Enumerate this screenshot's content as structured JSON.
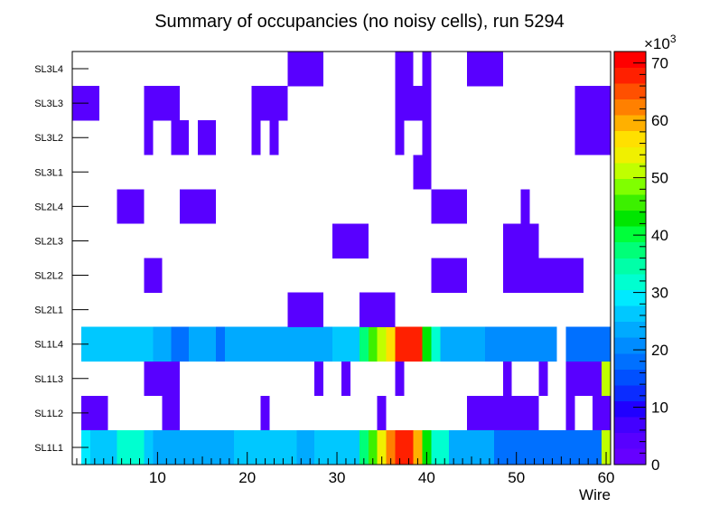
{
  "chart_data": {
    "type": "heatmap",
    "title": "Summary of occupancies (no noisy cells), run 5294",
    "xlabel": "Wire",
    "ylabel": "",
    "xlim": [
      0.5,
      60.5
    ],
    "xticks": [
      10,
      20,
      30,
      40,
      50,
      60
    ],
    "rows": [
      "SL1L1",
      "SL1L2",
      "SL1L3",
      "SL1L4",
      "SL2L1",
      "SL2L2",
      "SL2L3",
      "SL2L4",
      "SL3L1",
      "SL3L2",
      "SL3L3",
      "SL3L4"
    ],
    "colorbar": {
      "min": 0,
      "max": 72,
      "ticks": [
        0,
        10,
        20,
        30,
        40,
        50,
        60,
        70
      ],
      "tick_labels": [
        "0",
        "10",
        "20",
        "30",
        "40",
        "50",
        "60",
        "70"
      ],
      "multiplier": "×10",
      "multiplier_exp": "3"
    },
    "cells": {
      "SL1L1": [
        [
          2,
          2,
          28
        ],
        [
          3,
          5,
          25
        ],
        [
          6,
          8,
          32
        ],
        [
          9,
          9,
          27
        ],
        [
          10,
          18,
          24
        ],
        [
          19,
          25,
          27
        ],
        [
          26,
          27,
          24
        ],
        [
          28,
          32,
          27
        ],
        [
          33,
          33,
          37
        ],
        [
          34,
          34,
          45
        ],
        [
          35,
          35,
          55
        ],
        [
          36,
          36,
          62
        ],
        [
          37,
          38,
          67
        ],
        [
          39,
          39,
          60
        ],
        [
          40,
          40,
          44
        ],
        [
          41,
          42,
          31
        ],
        [
          43,
          47,
          24
        ],
        [
          48,
          59,
          19
        ],
        [
          60,
          60,
          50
        ]
      ],
      "SL1L2": [
        [
          2,
          4,
          4
        ],
        [
          11,
          12,
          4
        ],
        [
          22,
          22,
          4
        ],
        [
          35,
          35,
          4
        ],
        [
          45,
          52,
          4
        ],
        [
          56,
          56,
          4
        ],
        [
          59,
          60,
          4
        ]
      ],
      "SL1L3": [
        [
          9,
          12,
          4
        ],
        [
          28,
          28,
          4
        ],
        [
          31,
          31,
          4
        ],
        [
          37,
          37,
          4
        ],
        [
          49,
          49,
          4
        ],
        [
          53,
          53,
          4
        ],
        [
          56,
          59,
          4
        ],
        [
          60,
          60,
          52
        ]
      ],
      "SL1L4": [
        [
          2,
          9,
          27
        ],
        [
          10,
          11,
          24
        ],
        [
          12,
          13,
          19
        ],
        [
          14,
          16,
          24
        ],
        [
          17,
          17,
          19
        ],
        [
          18,
          29,
          24
        ],
        [
          30,
          32,
          27
        ],
        [
          33,
          33,
          37
        ],
        [
          34,
          34,
          45
        ],
        [
          35,
          35,
          52
        ],
        [
          36,
          36,
          58
        ],
        [
          37,
          37,
          67
        ],
        [
          38,
          39,
          69
        ],
        [
          40,
          40,
          42
        ],
        [
          41,
          41,
          32
        ],
        [
          42,
          46,
          24
        ],
        [
          47,
          54,
          21
        ],
        [
          56,
          56,
          19
        ],
        [
          57,
          60,
          17
        ]
      ],
      "SL2L1": [
        [
          25,
          28,
          4
        ],
        [
          33,
          36,
          4
        ]
      ],
      "SL2L2": [
        [
          9,
          10,
          4
        ],
        [
          41,
          44,
          4
        ],
        [
          49,
          57,
          4
        ]
      ],
      "SL2L3": [
        [
          30,
          33,
          4
        ],
        [
          49,
          52,
          4
        ]
      ],
      "SL2L4": [
        [
          6,
          8,
          4
        ],
        [
          13,
          16,
          4
        ],
        [
          41,
          44,
          4
        ],
        [
          51,
          51,
          4
        ]
      ],
      "SL3L1": [
        [
          39,
          40,
          4
        ]
      ],
      "SL3L2": [
        [
          9,
          9,
          4
        ],
        [
          12,
          13,
          4
        ],
        [
          15,
          16,
          4
        ],
        [
          21,
          21,
          4
        ],
        [
          23,
          23,
          4
        ],
        [
          37,
          37,
          4
        ],
        [
          40,
          40,
          4
        ],
        [
          57,
          60,
          4
        ]
      ],
      "SL3L3": [
        [
          1,
          3,
          4
        ],
        [
          9,
          12,
          4
        ],
        [
          21,
          24,
          4
        ],
        [
          37,
          40,
          4
        ],
        [
          57,
          60,
          4
        ]
      ],
      "SL3L4": [
        [
          25,
          28,
          4
        ],
        [
          37,
          38,
          4
        ],
        [
          40,
          40,
          4
        ],
        [
          45,
          48,
          4
        ]
      ]
    }
  }
}
